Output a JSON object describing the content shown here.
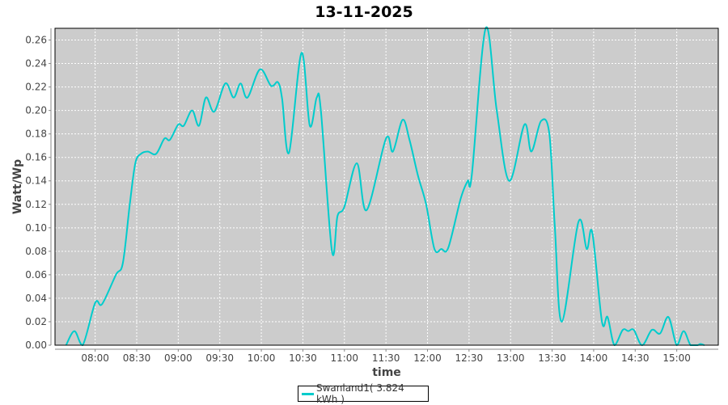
{
  "chart_data": {
    "type": "line",
    "title": "13-11-2025",
    "xlabel": "time",
    "ylabel": "Watt/Wp",
    "xlim": [
      "07:31",
      "15:30"
    ],
    "ylim": [
      0,
      0.27
    ],
    "grid": true,
    "background": "#cccccc",
    "legend_position": "bottom",
    "x_ticks": [
      "08:00",
      "08:30",
      "09:00",
      "09:30",
      "10:00",
      "10:30",
      "11:00",
      "11:30",
      "12:00",
      "12:30",
      "13:00",
      "13:30",
      "14:00",
      "14:30",
      "15:00"
    ],
    "y_ticks": [
      "0.00",
      "0.02",
      "0.04",
      "0.06",
      "0.08",
      "0.10",
      "0.12",
      "0.14",
      "0.16",
      "0.18",
      "0.20",
      "0.22",
      "0.24",
      "0.26"
    ],
    "series": [
      {
        "name": "Swanland1( 3.824 kWh )",
        "color": "#00cccc",
        "points": [
          [
            "07:39",
            0
          ],
          [
            "07:45",
            0.012
          ],
          [
            "07:51",
            0
          ],
          [
            "08:00",
            0.036
          ],
          [
            "08:05",
            0.035
          ],
          [
            "08:15",
            0.06
          ],
          [
            "08:20",
            0.07
          ],
          [
            "08:25",
            0.12
          ],
          [
            "08:29",
            0.155
          ],
          [
            "08:33",
            0.163
          ],
          [
            "08:38",
            0.165
          ],
          [
            "08:44",
            0.163
          ],
          [
            "08:50",
            0.176
          ],
          [
            "08:54",
            0.175
          ],
          [
            "09:00",
            0.188
          ],
          [
            "09:04",
            0.187
          ],
          [
            "09:10",
            0.2
          ],
          [
            "09:15",
            0.187
          ],
          [
            "09:20",
            0.211
          ],
          [
            "09:26",
            0.199
          ],
          [
            "09:34",
            0.223
          ],
          [
            "09:40",
            0.211
          ],
          [
            "09:45",
            0.223
          ],
          [
            "09:50",
            0.211
          ],
          [
            "09:59",
            0.235
          ],
          [
            "10:07",
            0.221
          ],
          [
            "10:12",
            0.224
          ],
          [
            "10:15",
            0.21
          ],
          [
            "10:20",
            0.164
          ],
          [
            "10:29",
            0.249
          ],
          [
            "10:35",
            0.187
          ],
          [
            "10:40",
            0.211
          ],
          [
            "10:43",
            0.2
          ],
          [
            "10:51",
            0.08
          ],
          [
            "10:55",
            0.11
          ],
          [
            "11:00",
            0.118
          ],
          [
            "11:09",
            0.155
          ],
          [
            "11:16",
            0.115
          ],
          [
            "11:30",
            0.176
          ],
          [
            "11:35",
            0.165
          ],
          [
            "11:42",
            0.192
          ],
          [
            "11:47",
            0.175
          ],
          [
            "11:53",
            0.145
          ],
          [
            "11:59",
            0.12
          ],
          [
            "12:05",
            0.082
          ],
          [
            "12:10",
            0.082
          ],
          [
            "12:15",
            0.083
          ],
          [
            "12:24",
            0.125
          ],
          [
            "12:29",
            0.14
          ],
          [
            "12:32",
            0.145
          ],
          [
            "12:42",
            0.27
          ],
          [
            "12:50",
            0.2
          ],
          [
            "12:59",
            0.14
          ],
          [
            "13:10",
            0.188
          ],
          [
            "13:15",
            0.165
          ],
          [
            "13:22",
            0.191
          ],
          [
            "13:28",
            0.18
          ],
          [
            "13:32",
            0.1
          ],
          [
            "13:37",
            0.02
          ],
          [
            "13:49",
            0.105
          ],
          [
            "13:55",
            0.082
          ],
          [
            "13:59",
            0.096
          ],
          [
            "14:06",
            0.02
          ],
          [
            "14:10",
            0.024
          ],
          [
            "14:15",
            0
          ],
          [
            "14:21",
            0.013
          ],
          [
            "14:25",
            0.012
          ],
          [
            "14:29",
            0.013
          ],
          [
            "14:35",
            0
          ],
          [
            "14:42",
            0.013
          ],
          [
            "14:48",
            0.01
          ],
          [
            "14:54",
            0.024
          ],
          [
            "15:00",
            0
          ],
          [
            "15:05",
            0.012
          ],
          [
            "15:10",
            0
          ],
          [
            "15:15",
            0
          ],
          [
            "15:17",
            0.001
          ],
          [
            "15:20",
            0
          ]
        ]
      }
    ]
  }
}
